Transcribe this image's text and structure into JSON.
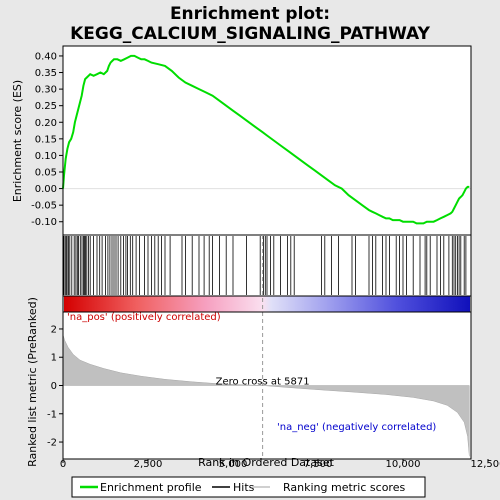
{
  "chart_data": {
    "type": "line",
    "title_line1": "Enrichment plot:",
    "title_line2": "KEGG_CALCIUM_SIGNALING_PATHWAY",
    "es_panel": {
      "ylabel": "Enrichment score (ES)",
      "ylim": [
        -0.14,
        0.43
      ],
      "yticks": [
        -0.1,
        -0.05,
        0.0,
        0.05,
        0.1,
        0.15,
        0.2,
        0.25,
        0.3,
        0.35,
        0.4
      ],
      "ytick_labels": [
        "-0.10",
        "-0.05",
        "0.00",
        "0.05",
        "0.10",
        "0.15",
        "0.20",
        "0.25",
        "0.30",
        "0.35",
        "0.40"
      ],
      "series_color": "#00dd00",
      "x": [
        0,
        30,
        80,
        130,
        180,
        240,
        300,
        350,
        400,
        450,
        500,
        550,
        600,
        650,
        700,
        800,
        900,
        1000,
        1100,
        1200,
        1300,
        1350,
        1400,
        1450,
        1500,
        1600,
        1700,
        1800,
        1900,
        2000,
        2100,
        2200,
        2300,
        2400,
        2500,
        2600,
        2800,
        3000,
        3200,
        3400,
        3600,
        3800,
        4000,
        4200,
        4400,
        4600,
        4800,
        5000,
        5200,
        5400,
        5600,
        5871,
        6000,
        6200,
        6400,
        6600,
        6800,
        7000,
        7200,
        7400,
        7600,
        7800,
        8000,
        8200,
        8400,
        8600,
        8800,
        9000,
        9100,
        9200,
        9300,
        9400,
        9500,
        9600,
        9700,
        9800,
        9900,
        10000,
        10100,
        10200,
        10300,
        10400,
        10500,
        10600,
        10700,
        10800,
        10900,
        11000,
        11100,
        11200,
        11300,
        11400,
        11450,
        11500,
        11550,
        11600,
        11650,
        11700,
        11750,
        11800,
        11850,
        11900,
        11950
      ],
      "es": [
        0.0,
        0.04,
        0.09,
        0.12,
        0.14,
        0.15,
        0.17,
        0.2,
        0.22,
        0.24,
        0.26,
        0.28,
        0.31,
        0.33,
        0.335,
        0.345,
        0.34,
        0.345,
        0.35,
        0.345,
        0.355,
        0.37,
        0.38,
        0.385,
        0.39,
        0.39,
        0.385,
        0.39,
        0.395,
        0.4,
        0.4,
        0.395,
        0.39,
        0.39,
        0.385,
        0.38,
        0.375,
        0.37,
        0.355,
        0.335,
        0.32,
        0.31,
        0.3,
        0.29,
        0.28,
        0.265,
        0.25,
        0.235,
        0.22,
        0.205,
        0.19,
        0.17,
        0.16,
        0.145,
        0.13,
        0.115,
        0.1,
        0.085,
        0.07,
        0.055,
        0.04,
        0.025,
        0.01,
        0.0,
        -0.02,
        -0.035,
        -0.05,
        -0.065,
        -0.07,
        -0.075,
        -0.08,
        -0.085,
        -0.09,
        -0.09,
        -0.095,
        -0.095,
        -0.095,
        -0.1,
        -0.1,
        -0.1,
        -0.1,
        -0.105,
        -0.105,
        -0.105,
        -0.1,
        -0.1,
        -0.1,
        -0.095,
        -0.09,
        -0.085,
        -0.08,
        -0.075,
        -0.07,
        -0.06,
        -0.05,
        -0.04,
        -0.03,
        -0.025,
        -0.02,
        -0.01,
        0.0,
        0.005,
        0.005
      ]
    },
    "hits": [
      20,
      60,
      90,
      120,
      160,
      200,
      260,
      330,
      380,
      420,
      460,
      510,
      560,
      600,
      630,
      660,
      700,
      750,
      800,
      900,
      1000,
      1080,
      1150,
      1250,
      1320,
      1380,
      1440,
      1500,
      1560,
      1620,
      1700,
      1780,
      1850,
      1900,
      1980,
      2050,
      2150,
      2250,
      2400,
      2500,
      2600,
      2700,
      2800,
      2900,
      3000,
      3150,
      3500,
      3600,
      3800,
      4000,
      4150,
      4300,
      4400,
      4600,
      4800,
      5000,
      5400,
      5800,
      5900,
      5950,
      6000,
      6100,
      6200,
      6400,
      6600,
      6700,
      6800,
      7600,
      7700,
      7900,
      8100,
      8500,
      8600,
      9000,
      9100,
      9200,
      9400,
      9500,
      9600,
      9800,
      9900,
      10000,
      10100,
      10300,
      10500,
      10650,
      10700,
      10800,
      11000,
      11100,
      11200,
      11350,
      11450,
      11500,
      11550,
      11600,
      11650,
      11700,
      11800,
      11850
    ],
    "metric_panel": {
      "ylabel": "Ranked list metric (PreRanked)",
      "ylim": [
        -2.6,
        2.6
      ],
      "yticks": [
        -2,
        -1,
        0,
        1,
        2
      ],
      "ytick_labels": [
        "-2",
        "-1",
        "0",
        "1",
        "2"
      ],
      "fill_color": "#c0c0c0",
      "rank": [
        0,
        50,
        150,
        300,
        500,
        800,
        1200,
        1700,
        2300,
        3000,
        3800,
        4600,
        5400,
        5871,
        6500,
        7500,
        8500,
        9500,
        10300,
        10900,
        11300,
        11600,
        11800,
        11900,
        11950
      ],
      "metric": [
        1.8,
        1.6,
        1.35,
        1.1,
        0.9,
        0.75,
        0.6,
        0.45,
        0.33,
        0.22,
        0.13,
        0.06,
        0.02,
        0.0,
        -0.06,
        -0.15,
        -0.23,
        -0.32,
        -0.42,
        -0.55,
        -0.7,
        -0.95,
        -1.3,
        -1.8,
        -2.5
      ],
      "zero_cross_label": "Zero cross at 5871",
      "zero_cross_rank": 5871,
      "pos_label": "'na_pos' (positively correlated)",
      "neg_label": "'na_neg' (negatively correlated)"
    },
    "xaxis": {
      "xlabel": "Rank in Ordered Dataset",
      "xlim": [
        0,
        12000
      ],
      "xticks": [
        0,
        2500,
        5000,
        7500,
        10000,
        12500
      ],
      "xtick_labels": [
        "0",
        "2,500",
        "5,000",
        "7,500",
        "10,000",
        "12,500"
      ]
    },
    "legend": {
      "placement": "bottom",
      "items": [
        {
          "label": "Enrichment profile",
          "kind": "green-line"
        },
        {
          "label": "Hits",
          "kind": "black-line"
        },
        {
          "label": "Ranking metric scores",
          "kind": "gray-line"
        }
      ]
    }
  }
}
